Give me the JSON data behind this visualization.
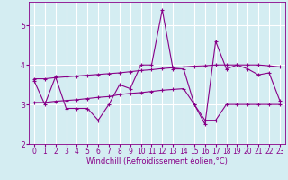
{
  "x": [
    0,
    1,
    2,
    3,
    4,
    5,
    6,
    7,
    8,
    9,
    10,
    11,
    12,
    13,
    14,
    15,
    16,
    17,
    18,
    19,
    20,
    21,
    22,
    23
  ],
  "line1": [
    3.6,
    3.0,
    3.7,
    2.9,
    2.9,
    2.9,
    2.6,
    3.0,
    3.5,
    3.4,
    4.0,
    4.0,
    5.4,
    3.9,
    3.9,
    3.0,
    2.5,
    4.6,
    3.9,
    4.0,
    3.9,
    3.75,
    3.8,
    3.1
  ],
  "line2": [
    3.65,
    3.65,
    3.68,
    3.7,
    3.72,
    3.74,
    3.76,
    3.78,
    3.8,
    3.83,
    3.86,
    3.88,
    3.91,
    3.93,
    3.95,
    3.97,
    3.98,
    4.0,
    4.0,
    4.0,
    4.0,
    4.0,
    3.98,
    3.95
  ],
  "line3": [
    3.05,
    3.05,
    3.08,
    3.1,
    3.12,
    3.15,
    3.18,
    3.2,
    3.25,
    3.28,
    3.3,
    3.33,
    3.36,
    3.38,
    3.4,
    3.0,
    2.6,
    2.6,
    3.0,
    3.0,
    3.0,
    3.0,
    3.0,
    3.0
  ],
  "line_color": "#880088",
  "bg_color": "#d4edf2",
  "grid_color": "#ffffff",
  "xlabel": "Windchill (Refroidissement éolien,°C)",
  "ylim": [
    2.0,
    5.6
  ],
  "xlim": [
    -0.5,
    23.5
  ],
  "yticks": [
    2,
    3,
    4,
    5
  ],
  "xticks": [
    0,
    1,
    2,
    3,
    4,
    5,
    6,
    7,
    8,
    9,
    10,
    11,
    12,
    13,
    14,
    15,
    16,
    17,
    18,
    19,
    20,
    21,
    22,
    23
  ],
  "tick_fontsize": 5.5,
  "xlabel_fontsize": 6.0
}
